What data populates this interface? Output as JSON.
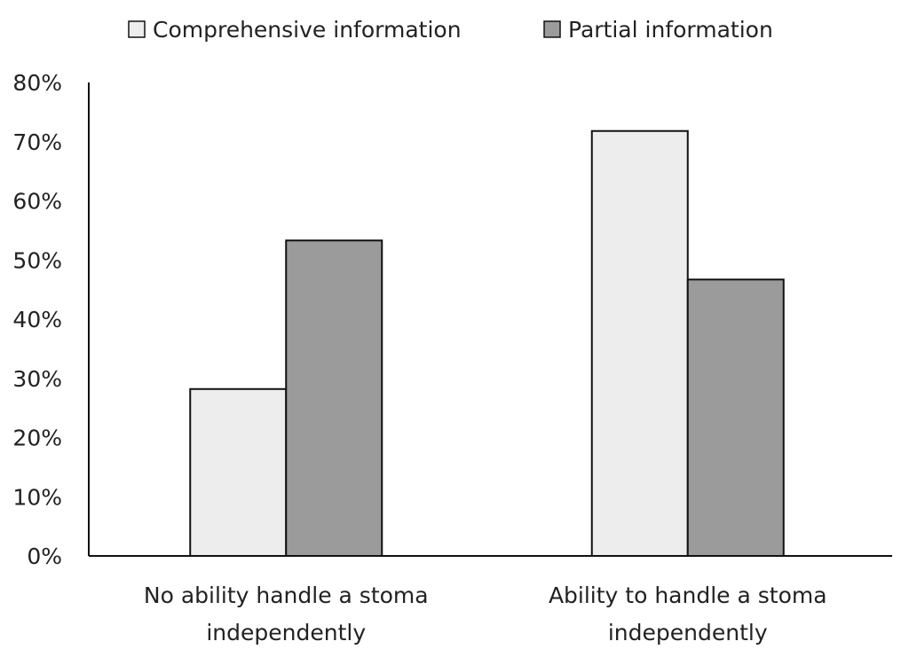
{
  "chart_data": {
    "type": "bar",
    "title": "",
    "xlabel": "",
    "ylabel": "",
    "categories": [
      [
        "No ability handle a stoma",
        "independently"
      ],
      [
        "Ability to handle a stoma",
        "independently"
      ]
    ],
    "series": [
      {
        "name": "Comprehensive information",
        "color": "#ededed",
        "values": [
          28.2,
          71.8
        ]
      },
      {
        "name": "Partial information",
        "color": "#9b9b9b",
        "values": [
          53.3,
          46.7
        ]
      }
    ],
    "ylim": [
      0,
      80
    ],
    "yticks": [
      "0%",
      "10%",
      "20%",
      "30%",
      "40%",
      "50%",
      "60%",
      "70%",
      "80%"
    ],
    "grid": false,
    "legend": "top"
  }
}
